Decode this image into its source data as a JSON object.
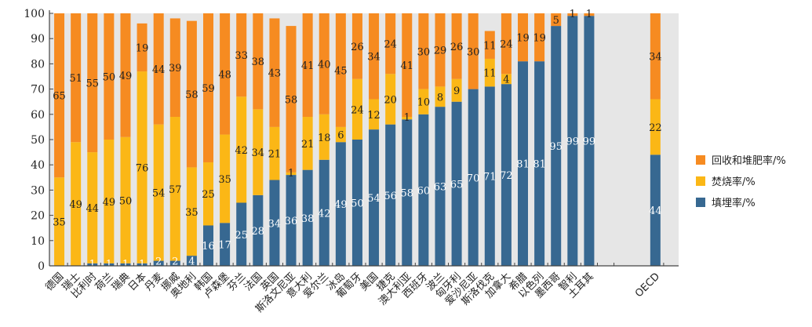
{
  "chart_data": {
    "type": "bar",
    "stacked": true,
    "title": "",
    "xlabel": "",
    "ylabel": "",
    "ylim": [
      0,
      100
    ],
    "yticks": [
      0,
      10,
      20,
      30,
      40,
      50,
      60,
      70,
      80,
      90,
      100
    ],
    "grid": false,
    "legend_position": "right",
    "categories": [
      "德国",
      "瑞士",
      "比利时",
      "荷兰",
      "瑞典",
      "日本",
      "丹麦",
      "挪威",
      "奥地利",
      "韩国",
      "卢森堡",
      "芬兰",
      "法国",
      "英国",
      "斯洛文尼亚",
      "意大利",
      "爱尔兰",
      "冰岛",
      "葡萄牙",
      "美国",
      "捷克",
      "澳大利亚",
      "西班牙",
      "波兰",
      "匈牙利",
      "爱沙尼亚",
      "斯洛伐克",
      "加拿大",
      "希腊",
      "以色列",
      "墨西哥",
      "智利",
      "土耳其",
      "",
      "OECD"
    ],
    "series": [
      {
        "name": "填埋率/%",
        "color": "#376891",
        "label_color": "#ffffff",
        "values": [
          0,
          0,
          1,
          1,
          1,
          1,
          2,
          2,
          4,
          16,
          17,
          25,
          28,
          34,
          36,
          38,
          42,
          49,
          50,
          54,
          56,
          58,
          60,
          63,
          65,
          70,
          71,
          72,
          81,
          81,
          95,
          99,
          99,
          null,
          44
        ],
        "labels": [
          null,
          null,
          "1",
          "1",
          "1",
          "1",
          "2",
          "2",
          "4",
          "16",
          "17",
          "25",
          "28",
          "34",
          "36",
          "38",
          "42",
          "49",
          "50",
          "54",
          "56",
          "58",
          "60",
          "63",
          "65",
          "70",
          "71",
          "72",
          "81",
          "81",
          "95",
          "99",
          "99",
          null,
          "44"
        ]
      },
      {
        "name": "焚烧率/%",
        "color": "#fbb716",
        "label_color": "#222222",
        "values": [
          35,
          49,
          44,
          49,
          50,
          76,
          54,
          57,
          35,
          25,
          35,
          42,
          34,
          21,
          1,
          21,
          18,
          6,
          24,
          12,
          20,
          1,
          10,
          8,
          9,
          0,
          11,
          4,
          0,
          0,
          0,
          0,
          0,
          null,
          22
        ],
        "labels": [
          "35",
          "49",
          "44",
          "49",
          "50",
          "76",
          "54",
          "57",
          "35",
          "25",
          "35",
          "42",
          "34",
          "21",
          "1",
          "21",
          "18",
          "6",
          "24",
          "12",
          "20",
          "1",
          "10",
          "8",
          "9",
          null,
          "11",
          "4",
          null,
          null,
          null,
          null,
          null,
          null,
          "22"
        ]
      },
      {
        "name": "回收和堆肥率/%",
        "color": "#f68b21",
        "label_color": "#222222",
        "values": [
          65,
          51,
          55,
          50,
          49,
          19,
          44,
          39,
          58,
          59,
          48,
          33,
          38,
          43,
          58,
          41,
          40,
          45,
          26,
          34,
          24,
          41,
          30,
          29,
          26,
          30,
          11,
          24,
          19,
          19,
          5,
          1,
          1,
          null,
          34
        ],
        "labels": [
          "65",
          "51",
          "55",
          "50",
          "49",
          "19",
          "44",
          "39",
          "58",
          "59",
          "48",
          "33",
          "38",
          "43",
          "58",
          "41",
          "40",
          "45",
          "26",
          "34",
          "24",
          "41",
          "30",
          "29",
          "26",
          "30",
          "11",
          "24",
          "19",
          "19",
          "5",
          "1",
          "1",
          null,
          "34"
        ]
      }
    ],
    "legend": [
      "回收和堆肥率/%",
      "焚烧率/%",
      "填埋率/%"
    ]
  },
  "colors": {
    "plot_background": "#e6e6e6",
    "axis": "#444444"
  }
}
